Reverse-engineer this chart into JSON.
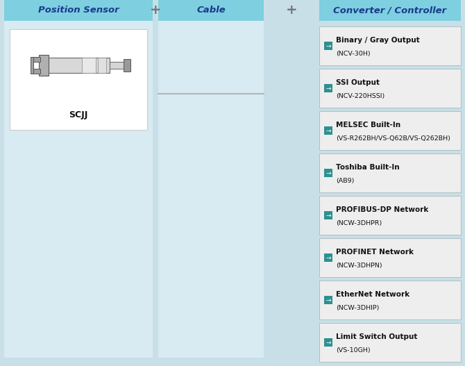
{
  "fig_w": 6.7,
  "fig_h": 5.27,
  "dpi": 100,
  "background_color": "#c8dfe8",
  "header_bg": "#7ecfe0",
  "header_text_color": "#1a3a8c",
  "col_bg_color": "#d8eaf2",
  "sensor_label": "SCJJ",
  "converter_items": [
    {
      "line1": "Binary / Gray Output",
      "line2": "(NCV-30H)"
    },
    {
      "line1": "SSI Output",
      "line2": "(NCV-220HSSI)"
    },
    {
      "line1": "MELSEC Built-In",
      "line2": "(VS-R262BH/VS-Q62B/VS-Q262BH)"
    },
    {
      "line1": "Toshiba Built-In",
      "line2": "(AB9)"
    },
    {
      "line1": "PROFIBUS-DP Network",
      "line2": "(NCW-3DHPR)"
    },
    {
      "line1": "PROFINET Network",
      "line2": "(NCW-3DHPN)"
    },
    {
      "line1": "EtherNet Network",
      "line2": "(NCW-3DHIP)"
    },
    {
      "line1": "Limit Switch Output",
      "line2": "(VS-10GH)"
    }
  ],
  "item_box_color": "#eeeeee",
  "item_border_color": "#b0c0c0",
  "item_arrow_color": "#2e9090",
  "item_text_color": "#111111",
  "item_text_size": 7.5,
  "item_subtext_size": 6.8
}
